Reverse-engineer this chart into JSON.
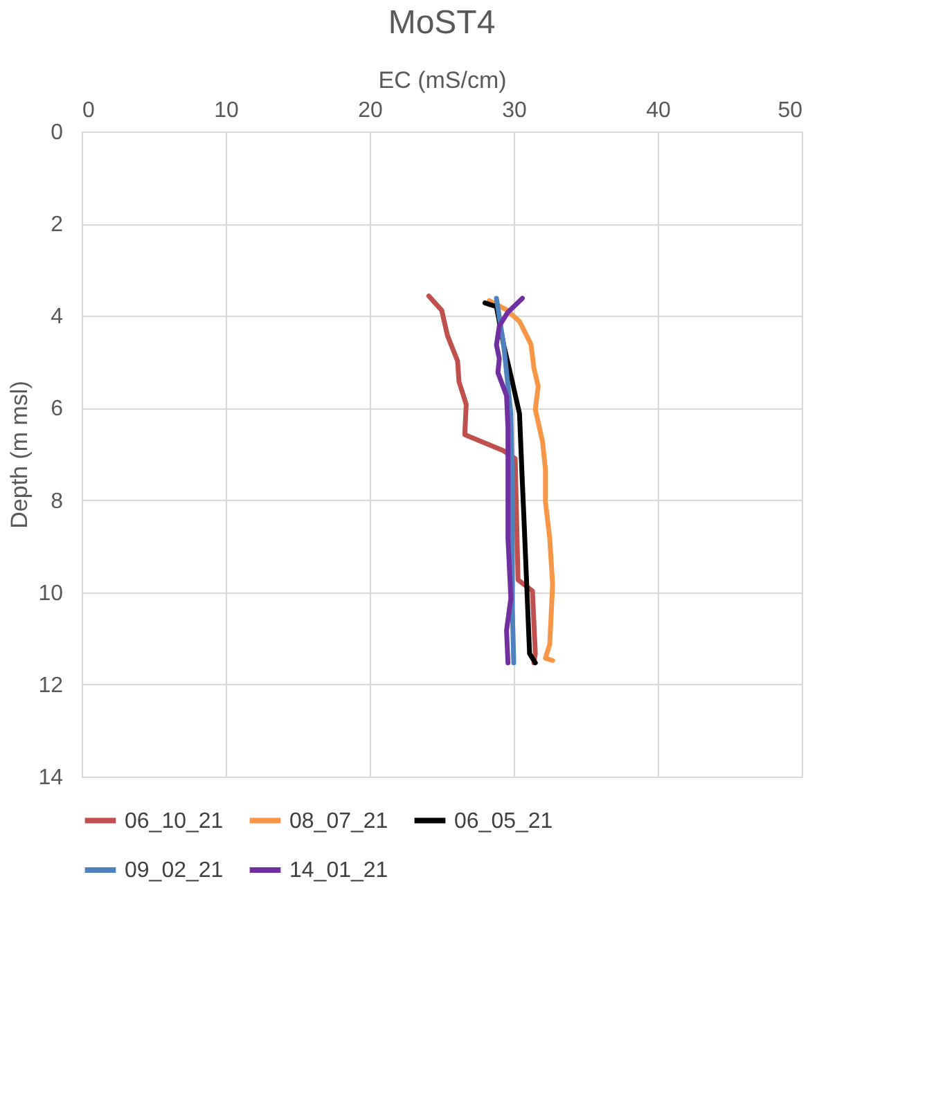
{
  "chart_data": {
    "type": "line",
    "title": "MoST4",
    "xlabel": "EC (mS/cm)",
    "ylabel": "Depth (m msl)",
    "xlim": [
      0,
      50
    ],
    "xticks": [
      0,
      10,
      20,
      30,
      40,
      50
    ],
    "ylim": [
      14,
      0
    ],
    "yticks": [
      0,
      2,
      4,
      6,
      8,
      10,
      12,
      14
    ],
    "grid": true,
    "legend": "bottom",
    "marker": "none",
    "line_style": "solid",
    "series": [
      {
        "name": "06_10_21",
        "color": "#c0504d",
        "x": [
          24.1,
          25.0,
          25.4,
          26.1,
          26.2,
          26.7,
          26.6,
          29.3,
          30.1,
          30.3,
          31.3,
          31.5,
          31.4
        ],
        "values": [
          3.57,
          3.88,
          4.43,
          4.98,
          5.43,
          5.92,
          6.58,
          6.93,
          7.1,
          9.73,
          9.97,
          11.33,
          11.53
        ]
      },
      {
        "name": "08_07_21",
        "color": "#f79646",
        "x": [
          28.3,
          29.5,
          30.4,
          31.2,
          31.4,
          31.7,
          31.5,
          32.0,
          32.2,
          32.2,
          32.5,
          32.7,
          32.5,
          32.2,
          32.7
        ],
        "values": [
          3.67,
          3.87,
          4.12,
          4.62,
          5.13,
          5.53,
          6.03,
          6.73,
          7.33,
          8.03,
          8.83,
          9.83,
          11.13,
          11.43,
          11.48
        ]
      },
      {
        "name": "06_05_21",
        "color": "#000000",
        "x": [
          28.0,
          28.8,
          29.3,
          29.9,
          30.4,
          30.6,
          30.7,
          30.9,
          31.1,
          31.5
        ],
        "values": [
          3.72,
          3.8,
          4.63,
          5.43,
          6.12,
          7.63,
          8.33,
          9.83,
          11.33,
          11.53
        ]
      },
      {
        "name": "09_02_21",
        "color": "#4f81bd",
        "x": [
          28.8,
          29.3,
          29.8,
          29.9,
          29.9,
          30.0
        ],
        "values": [
          3.62,
          4.63,
          6.12,
          7.63,
          10.33,
          11.53
        ]
      },
      {
        "name": "14_01_21",
        "color": "#7030a0",
        "x": [
          30.6,
          29.6,
          29.0,
          28.8,
          29.0,
          28.9,
          29.5,
          29.6,
          29.6,
          29.6,
          29.8,
          29.5,
          29.6
        ],
        "values": [
          3.62,
          3.92,
          4.22,
          4.63,
          4.93,
          5.23,
          5.73,
          6.43,
          7.63,
          8.83,
          10.13,
          10.83,
          11.53
        ]
      }
    ]
  }
}
